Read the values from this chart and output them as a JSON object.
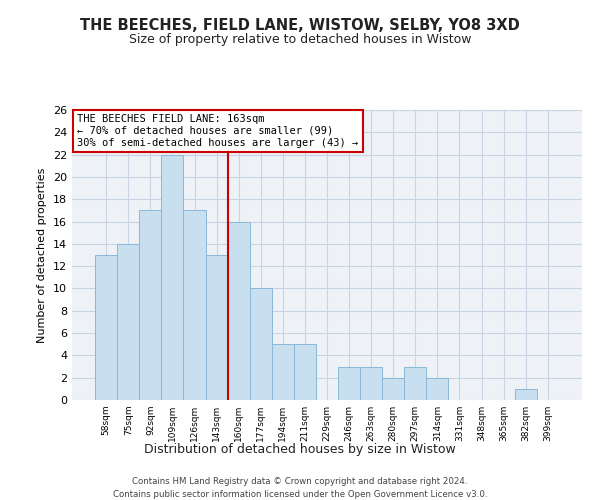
{
  "title": "THE BEECHES, FIELD LANE, WISTOW, SELBY, YO8 3XD",
  "subtitle": "Size of property relative to detached houses in Wistow",
  "xlabel": "Distribution of detached houses by size in Wistow",
  "ylabel": "Number of detached properties",
  "bin_labels": [
    "58sqm",
    "75sqm",
    "92sqm",
    "109sqm",
    "126sqm",
    "143sqm",
    "160sqm",
    "177sqm",
    "194sqm",
    "211sqm",
    "229sqm",
    "246sqm",
    "263sqm",
    "280sqm",
    "297sqm",
    "314sqm",
    "331sqm",
    "348sqm",
    "365sqm",
    "382sqm",
    "399sqm"
  ],
  "bar_values": [
    13,
    14,
    17,
    22,
    17,
    13,
    16,
    10,
    5,
    5,
    0,
    3,
    3,
    2,
    3,
    2,
    0,
    0,
    0,
    1,
    0
  ],
  "bar_color": "#c8dff0",
  "bar_edge_color": "#8ab8d8",
  "highlight_line_color": "#cc0000",
  "annotation_line1": "THE BEECHES FIELD LANE: 163sqm",
  "annotation_line2": "← 70% of detached houses are smaller (99)",
  "annotation_line3": "30% of semi-detached houses are larger (43) →",
  "annotation_box_edge": "#cc0000",
  "ylim": [
    0,
    26
  ],
  "yticks": [
    0,
    2,
    4,
    6,
    8,
    10,
    12,
    14,
    16,
    18,
    20,
    22,
    24,
    26
  ],
  "footer_line1": "Contains HM Land Registry data © Crown copyright and database right 2024.",
  "footer_line2": "Contains public sector information licensed under the Open Government Licence v3.0.",
  "background_color": "#eef2f7",
  "grid_color": "#c8d4e4"
}
